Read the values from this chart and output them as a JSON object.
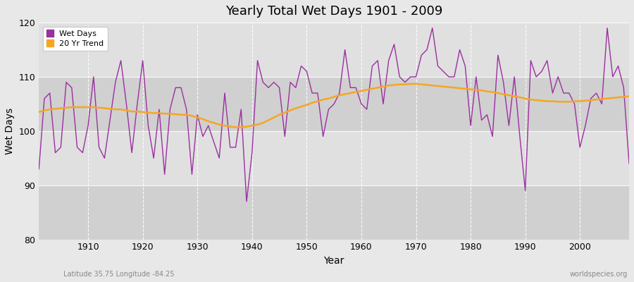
{
  "title": "Yearly Total Wet Days 1901 - 2009",
  "xlabel": "Year",
  "ylabel": "Wet Days",
  "xlim": [
    1901,
    2009
  ],
  "ylim": [
    80,
    120
  ],
  "yticks": [
    80,
    90,
    100,
    110,
    120
  ],
  "xticks": [
    1910,
    1920,
    1930,
    1940,
    1950,
    1960,
    1970,
    1980,
    1990,
    2000
  ],
  "wet_days_color": "#9b30a0",
  "trend_color": "#f5a623",
  "bg_color": "#e8e8e8",
  "plot_bg_color": "#e0e0e0",
  "stripe_color": "#d0d0d0",
  "footnote_left": "Latitude 35.75 Longitude -84.25",
  "footnote_right": "worldspecies.org",
  "legend_entries": [
    "Wet Days",
    "20 Yr Trend"
  ],
  "wet_days": {
    "1901": 93,
    "1902": 106,
    "1903": 107,
    "1904": 96,
    "1905": 97,
    "1906": 109,
    "1907": 108,
    "1908": 97,
    "1909": 96,
    "1910": 101,
    "1911": 110,
    "1912": 97,
    "1913": 95,
    "1914": 102,
    "1915": 109,
    "1916": 113,
    "1917": 105,
    "1918": 96,
    "1919": 105,
    "1920": 113,
    "1921": 101,
    "1922": 95,
    "1923": 104,
    "1924": 92,
    "1925": 104,
    "1926": 108,
    "1927": 108,
    "1928": 104,
    "1929": 92,
    "1930": 103,
    "1931": 99,
    "1932": 101,
    "1933": 98,
    "1934": 95,
    "1935": 107,
    "1936": 97,
    "1937": 97,
    "1938": 104,
    "1939": 87,
    "1940": 96,
    "1941": 113,
    "1942": 109,
    "1943": 108,
    "1944": 109,
    "1945": 108,
    "1946": 99,
    "1947": 109,
    "1948": 108,
    "1949": 112,
    "1950": 111,
    "1951": 107,
    "1952": 107,
    "1953": 99,
    "1954": 104,
    "1955": 105,
    "1956": 107,
    "1957": 115,
    "1958": 108,
    "1959": 108,
    "1960": 105,
    "1961": 104,
    "1962": 112,
    "1963": 113,
    "1964": 105,
    "1965": 113,
    "1966": 116,
    "1967": 110,
    "1968": 109,
    "1969": 110,
    "1970": 110,
    "1971": 114,
    "1972": 115,
    "1973": 119,
    "1974": 112,
    "1975": 111,
    "1976": 110,
    "1977": 110,
    "1978": 115,
    "1979": 112,
    "1980": 101,
    "1981": 110,
    "1982": 102,
    "1983": 103,
    "1984": 99,
    "1985": 114,
    "1986": 109,
    "1987": 101,
    "1988": 110,
    "1989": 99,
    "1990": 89,
    "1991": 113,
    "1992": 110,
    "1993": 111,
    "1994": 113,
    "1995": 107,
    "1996": 110,
    "1997": 107,
    "1998": 107,
    "1999": 105,
    "2000": 97,
    "2001": 101,
    "2002": 106,
    "2003": 107,
    "2004": 105,
    "2005": 119,
    "2006": 110,
    "2007": 112,
    "2008": 108,
    "2009": 94
  },
  "trend": {
    "1901": 103.5,
    "1902": 103.8,
    "1903": 104.0,
    "1904": 104.1,
    "1905": 104.2,
    "1906": 104.3,
    "1907": 104.4,
    "1908": 104.4,
    "1909": 104.4,
    "1910": 104.4,
    "1911": 104.4,
    "1912": 104.3,
    "1913": 104.2,
    "1914": 104.1,
    "1915": 104.0,
    "1916": 104.0,
    "1917": 103.8,
    "1918": 103.6,
    "1919": 103.6,
    "1920": 103.5,
    "1921": 103.4,
    "1922": 103.3,
    "1923": 103.3,
    "1924": 103.2,
    "1925": 103.2,
    "1926": 103.1,
    "1927": 103.0,
    "1928": 103.0,
    "1929": 102.8,
    "1930": 102.5,
    "1931": 102.2,
    "1932": 101.8,
    "1933": 101.5,
    "1934": 101.2,
    "1935": 101.0,
    "1936": 100.8,
    "1937": 100.7,
    "1938": 100.7,
    "1939": 100.8,
    "1940": 101.0,
    "1941": 101.2,
    "1942": 101.5,
    "1943": 102.0,
    "1944": 102.5,
    "1945": 103.0,
    "1946": 103.4,
    "1947": 103.8,
    "1948": 104.2,
    "1949": 104.5,
    "1950": 104.8,
    "1951": 105.2,
    "1952": 105.5,
    "1953": 105.8,
    "1954": 106.0,
    "1955": 106.3,
    "1956": 106.6,
    "1957": 106.8,
    "1958": 107.0,
    "1959": 107.2,
    "1960": 107.4,
    "1961": 107.6,
    "1962": 107.8,
    "1963": 108.0,
    "1964": 108.2,
    "1965": 108.4,
    "1966": 108.5,
    "1967": 108.6,
    "1968": 108.6,
    "1969": 108.7,
    "1970": 108.7,
    "1971": 108.6,
    "1972": 108.5,
    "1973": 108.4,
    "1974": 108.3,
    "1975": 108.2,
    "1976": 108.1,
    "1977": 108.0,
    "1978": 107.9,
    "1979": 107.8,
    "1980": 107.7,
    "1981": 107.6,
    "1982": 107.5,
    "1983": 107.3,
    "1984": 107.2,
    "1985": 107.0,
    "1986": 106.8,
    "1987": 106.6,
    "1988": 106.4,
    "1989": 106.2,
    "1990": 106.0,
    "1991": 105.8,
    "1992": 105.7,
    "1993": 105.6,
    "1994": 105.5,
    "1995": 105.5,
    "1996": 105.4,
    "1997": 105.4,
    "1998": 105.4,
    "1999": 105.5,
    "2000": 105.5,
    "2001": 105.6,
    "2002": 105.7,
    "2003": 105.8,
    "2004": 105.9,
    "2005": 106.0,
    "2006": 106.1,
    "2007": 106.2,
    "2008": 106.3,
    "2009": 106.4
  }
}
